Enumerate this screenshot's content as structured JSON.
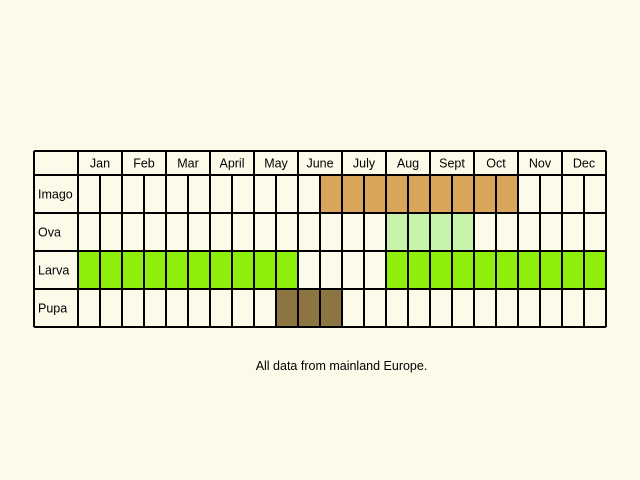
{
  "chart_data": {
    "type": "table",
    "months": [
      "Jan",
      "Feb",
      "Mar",
      "April",
      "May",
      "June",
      "July",
      "Aug",
      "Sept",
      "Oct",
      "Nov",
      "Dec"
    ],
    "rows": [
      {
        "label": "Imago",
        "color": "#d9a55b",
        "active_half_months": [
          11,
          12,
          13,
          14,
          15,
          16,
          17,
          18,
          19
        ]
      },
      {
        "label": "Ova",
        "color": "#c7f3ad",
        "active_half_months": [
          14,
          15,
          16,
          17
        ]
      },
      {
        "label": "Larva",
        "color": "#8ef00a",
        "active_half_months": [
          0,
          1,
          2,
          3,
          4,
          5,
          6,
          7,
          8,
          9,
          14,
          15,
          16,
          17,
          18,
          19,
          20,
          21,
          22,
          23
        ]
      },
      {
        "label": "Pupa",
        "color": "#8c7542",
        "active_half_months": [
          9,
          10,
          11
        ]
      }
    ],
    "background_color": "#fcfbea",
    "grid_color": "#000000"
  },
  "footnote": "All data from mainland Europe."
}
